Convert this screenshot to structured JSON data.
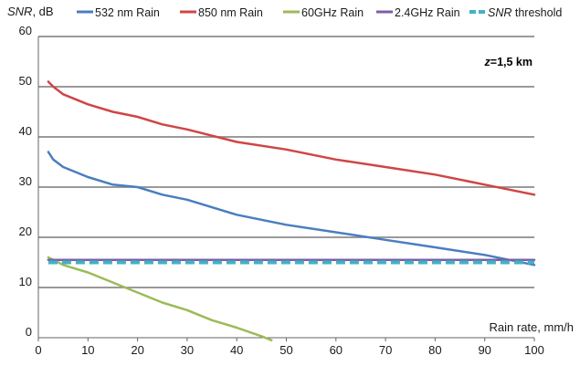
{
  "chart_data": {
    "type": "line",
    "ylabel_italic": "SNR",
    "ylabel_unit": ", dB",
    "xlabel": "Rain rate, mm/h",
    "annotation_italic": "z",
    "annotation_rest": "=1,5 km",
    "xlim": [
      0,
      100
    ],
    "ylim": [
      0,
      60
    ],
    "xticks": [
      0,
      10,
      20,
      30,
      40,
      50,
      60,
      70,
      80,
      90,
      100
    ],
    "yticks": [
      0,
      10,
      20,
      30,
      40,
      50,
      60
    ],
    "grid": "horizontal",
    "legend_position": "top",
    "series": [
      {
        "name": "532 nm Rain",
        "color": "#4a7ebf",
        "x": [
          2,
          3,
          5,
          10,
          15,
          20,
          25,
          30,
          40,
          50,
          60,
          70,
          80,
          90,
          100
        ],
        "y": [
          37,
          35.5,
          34,
          32,
          30.5,
          30,
          28.5,
          27.5,
          24.5,
          22.5,
          21,
          19.5,
          18,
          16.5,
          14.5
        ]
      },
      {
        "name": "850 nm Rain",
        "color": "#d04545",
        "x": [
          2,
          3,
          5,
          10,
          15,
          20,
          25,
          30,
          40,
          50,
          60,
          70,
          80,
          90,
          100
        ],
        "y": [
          51,
          50,
          48.5,
          46.5,
          45,
          44,
          42.5,
          41.5,
          39,
          37.5,
          35.5,
          34,
          32.5,
          30.5,
          28.5
        ]
      },
      {
        "name": "60GHz Rain",
        "color": "#9bbb59",
        "x": [
          2,
          5,
          10,
          15,
          20,
          25,
          30,
          35,
          40,
          45,
          47
        ],
        "y": [
          16,
          14.5,
          13,
          11,
          9,
          7,
          5.5,
          3.5,
          2,
          0.3,
          -0.5
        ]
      },
      {
        "name": "2.4GHz Rain",
        "color": "#7b5fa6",
        "x": [
          2,
          100
        ],
        "y": [
          15.5,
          15.5
        ]
      },
      {
        "name": "SNR threshold",
        "name_italic": "SNR",
        "name_rest": " threshold",
        "color": "#3fb3c6",
        "dashed": true,
        "x": [
          2,
          100
        ],
        "y": [
          15,
          15
        ]
      }
    ]
  }
}
